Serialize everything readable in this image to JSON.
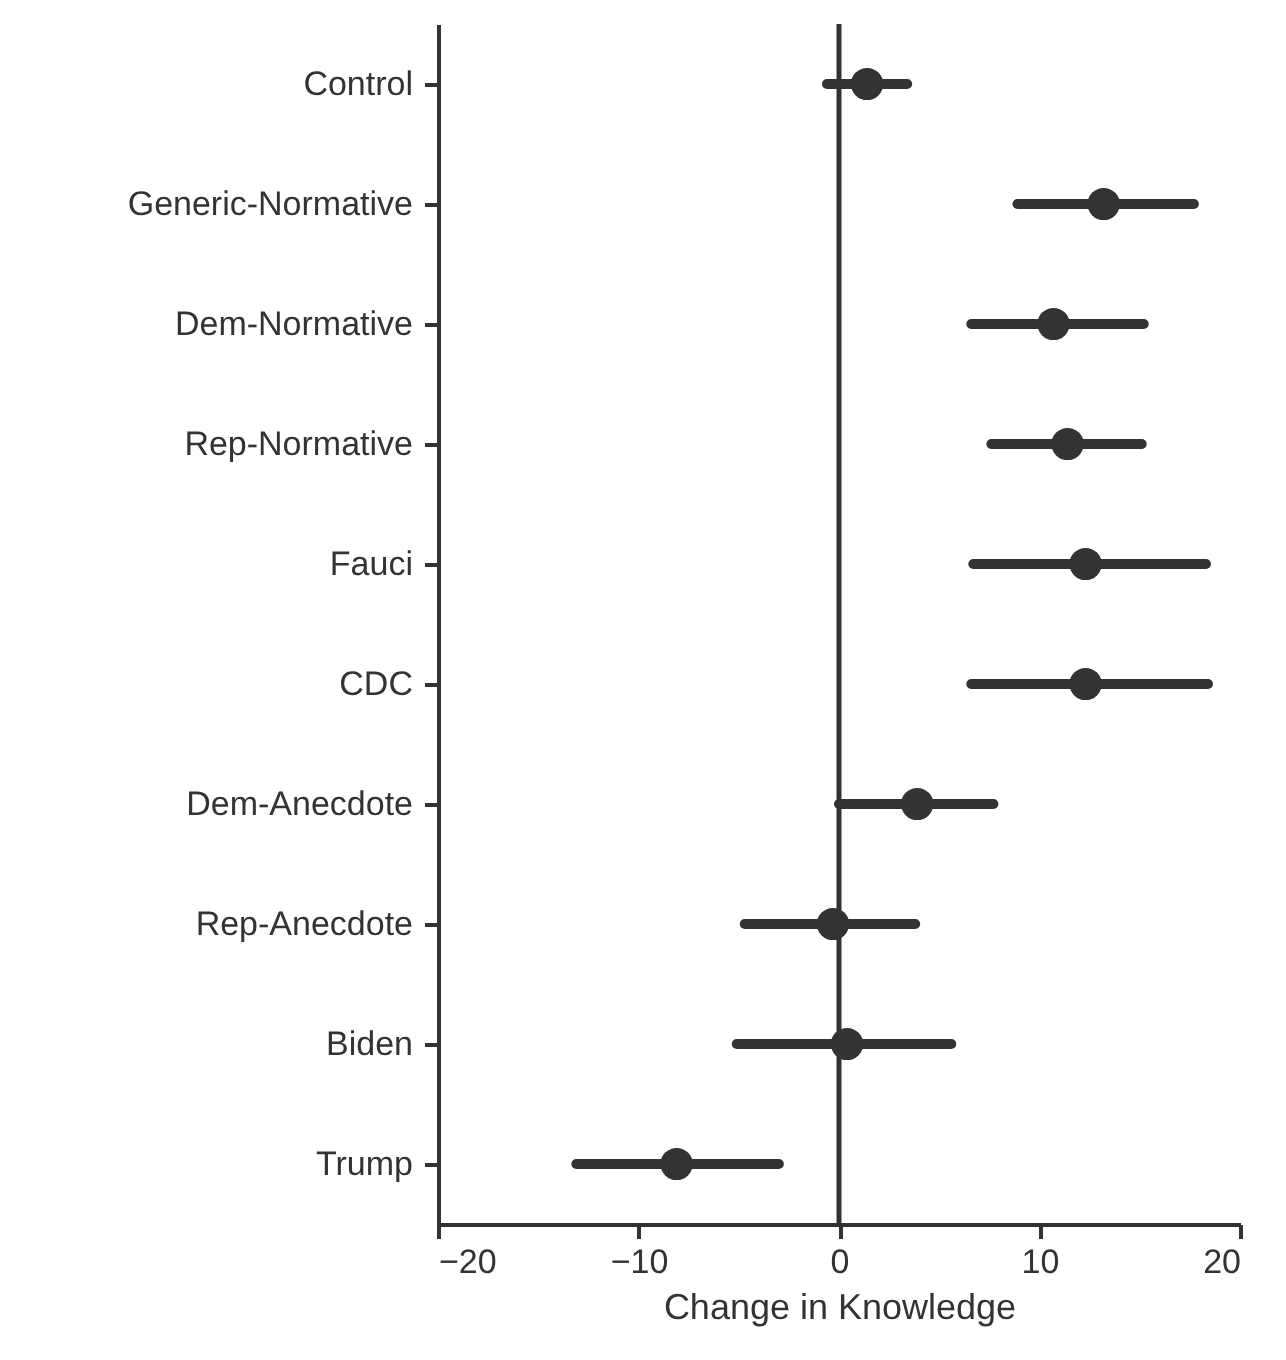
{
  "chart_data": {
    "type": "scatter",
    "orientation": "horizontal",
    "xlabel": "Change in Knowledge",
    "categories": [
      "Control",
      "Generic-Normative",
      "Dem-Normative",
      "Rep-Normative",
      "Fauci",
      "CDC",
      "Dem-Anecdote",
      "Rep-Anecdote",
      "Biden",
      "Trump"
    ],
    "values": [
      1.4,
      13.2,
      10.7,
      11.4,
      12.3,
      12.3,
      3.9,
      -0.3,
      0.4,
      -8.1
    ],
    "errors": [
      [
        -0.6,
        3.4
      ],
      [
        8.9,
        17.7
      ],
      [
        6.6,
        15.2
      ],
      [
        7.6,
        15.1
      ],
      [
        6.7,
        18.3
      ],
      [
        6.6,
        18.4
      ],
      [
        0.0,
        7.7
      ],
      [
        -4.7,
        3.8
      ],
      [
        -5.1,
        5.6
      ],
      [
        -13.1,
        -3.0
      ]
    ],
    "color": "#333333",
    "xlim": [
      -20,
      20
    ],
    "xticks": [
      -20,
      -10,
      0,
      10,
      20
    ],
    "ref_lines": [
      {
        "axis": "x",
        "value": 0,
        "color": "#333333"
      }
    ],
    "marker": "circle",
    "grid": false
  }
}
